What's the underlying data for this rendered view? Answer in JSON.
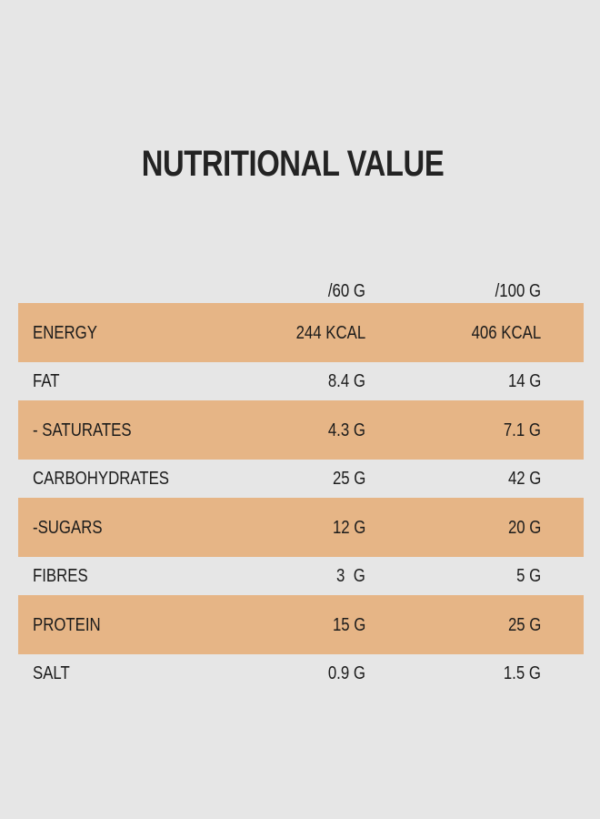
{
  "title": "NUTRITIONAL VALUE",
  "table": {
    "columns": [
      "",
      "/60 G",
      "/100 G"
    ],
    "rows": [
      {
        "nutrient": "ENERGY",
        "per_60g": "244 KCAL",
        "per_100g": "406 KCAL",
        "highlighted": true
      },
      {
        "nutrient": "FAT",
        "per_60g": "8.4 G",
        "per_100g": "14 G",
        "highlighted": false
      },
      {
        "nutrient": "- SATURATES",
        "per_60g": "4.3 G",
        "per_100g": "7.1 G",
        "highlighted": true
      },
      {
        "nutrient": "CARBOHYDRATES",
        "per_60g": "25 G",
        "per_100g": "42 G",
        "highlighted": false
      },
      {
        "nutrient": "-SUGARS",
        "per_60g": "12 G",
        "per_100g": "20 G",
        "highlighted": true
      },
      {
        "nutrient": "FIBRES",
        "per_60g": "3  G",
        "per_100g": "5 G",
        "highlighted": false
      },
      {
        "nutrient": "PROTEIN",
        "per_60g": "15 G",
        "per_100g": "25 G",
        "highlighted": true
      },
      {
        "nutrient": "SALT",
        "per_60g": "0.9 G",
        "per_100g": "1.5 G",
        "highlighted": false
      }
    ]
  },
  "colors": {
    "background": "#e6e6e6",
    "highlight_row": "#e6b586",
    "text": "#1b1b1b"
  }
}
